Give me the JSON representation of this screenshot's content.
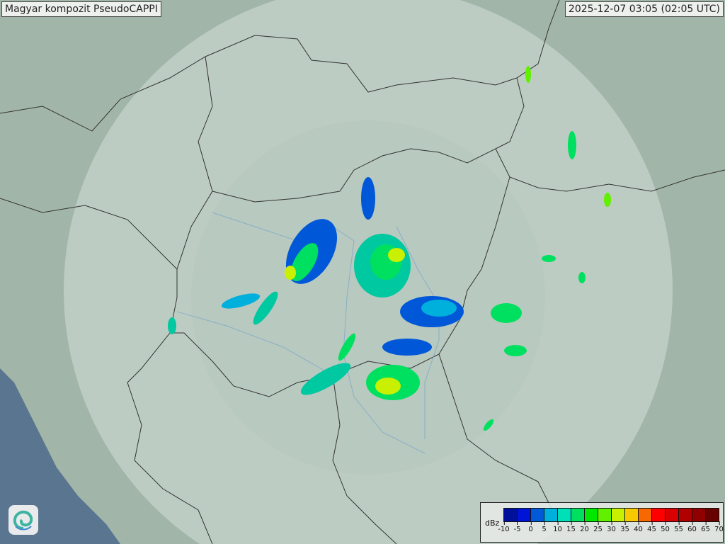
{
  "title": "Magyar kompozit  PseudoCAPPI",
  "timestamp": "2025-12-07 03:05 (02:05 UTC)",
  "logo": {
    "icon": "swirl-logo-icon"
  },
  "legend": {
    "unit": "dBz",
    "ticks": [
      "-10",
      "-5",
      "0",
      "5",
      "10",
      "15",
      "20",
      "25",
      "30",
      "35",
      "40",
      "45",
      "50",
      "55",
      "60",
      "65",
      "70"
    ],
    "colors": [
      "#00109a",
      "#0014d8",
      "#005ad8",
      "#00b0dc",
      "#00e0b8",
      "#00e060",
      "#00e800",
      "#60f000",
      "#c8f000",
      "#f8c800",
      "#f86800",
      "#ff0000",
      "#d80000",
      "#b00000",
      "#900000",
      "#680000"
    ]
  },
  "map_colors": {
    "land": "#9fb3a7",
    "coverage": "#c9d6cf",
    "sea": "#5a7590",
    "border": "#333333",
    "river": "#7fa7c9"
  }
}
